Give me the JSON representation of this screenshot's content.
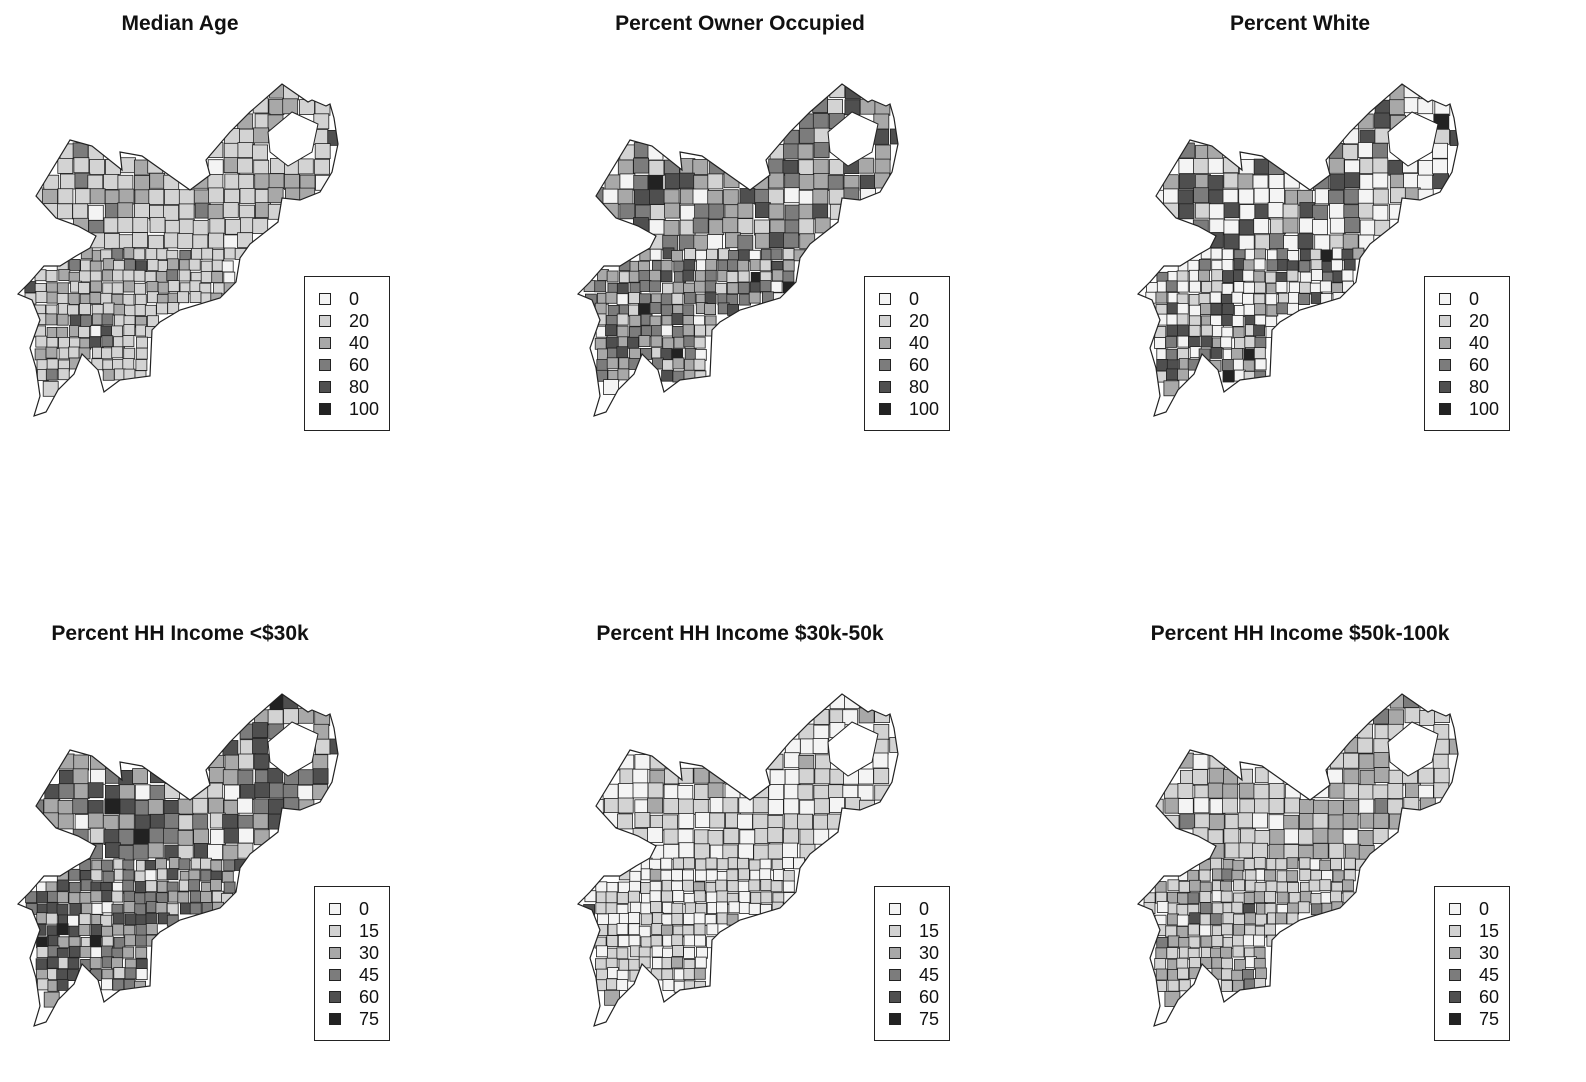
{
  "panels": [
    {
      "title": "Median Age",
      "legend": [
        "0",
        "20",
        "40",
        "60",
        "80",
        "100"
      ],
      "palette": [
        "#f4f4f4",
        "#d3d3d3",
        "#a8a8a8",
        "#7c7c7c",
        "#4f4f4f",
        "#222222"
      ],
      "weights": [
        0.04,
        0.66,
        0.24,
        0.05,
        0.01,
        0.0
      ]
    },
    {
      "title": "Percent Owner Occupied",
      "legend": [
        "0",
        "20",
        "40",
        "60",
        "80",
        "100"
      ],
      "palette": [
        "#f4f4f4",
        "#d3d3d3",
        "#a8a8a8",
        "#7c7c7c",
        "#4f4f4f",
        "#222222"
      ],
      "weights": [
        0.08,
        0.18,
        0.3,
        0.26,
        0.16,
        0.02
      ]
    },
    {
      "title": "Percent White",
      "legend": [
        "0",
        "20",
        "40",
        "60",
        "80",
        "100"
      ],
      "palette": [
        "#f4f4f4",
        "#d3d3d3",
        "#a8a8a8",
        "#7c7c7c",
        "#4f4f4f",
        "#222222"
      ],
      "weights": [
        0.4,
        0.18,
        0.12,
        0.1,
        0.18,
        0.02
      ]
    },
    {
      "title": "Percent HH Income <$30k",
      "legend": [
        "0",
        "15",
        "30",
        "45",
        "60",
        "75"
      ],
      "palette": [
        "#f4f4f4",
        "#d3d3d3",
        "#a8a8a8",
        "#7c7c7c",
        "#4f4f4f",
        "#222222"
      ],
      "weights": [
        0.06,
        0.18,
        0.26,
        0.24,
        0.22,
        0.04
      ]
    },
    {
      "title": "Percent HH Income $30k-50k",
      "legend": [
        "0",
        "15",
        "30",
        "45",
        "60",
        "75"
      ],
      "palette": [
        "#f4f4f4",
        "#d3d3d3",
        "#a8a8a8",
        "#7c7c7c",
        "#4f4f4f",
        "#222222"
      ],
      "weights": [
        0.45,
        0.5,
        0.04,
        0.005,
        0.005,
        0.0
      ]
    },
    {
      "title": "Percent HH Income $50k-100k",
      "legend": [
        "0",
        "15",
        "30",
        "45",
        "60",
        "75"
      ],
      "palette": [
        "#f4f4f4",
        "#d3d3d3",
        "#a8a8a8",
        "#7c7c7c",
        "#4f4f4f",
        "#222222"
      ],
      "weights": [
        0.12,
        0.45,
        0.36,
        0.06,
        0.01,
        0.0
      ]
    }
  ]
}
